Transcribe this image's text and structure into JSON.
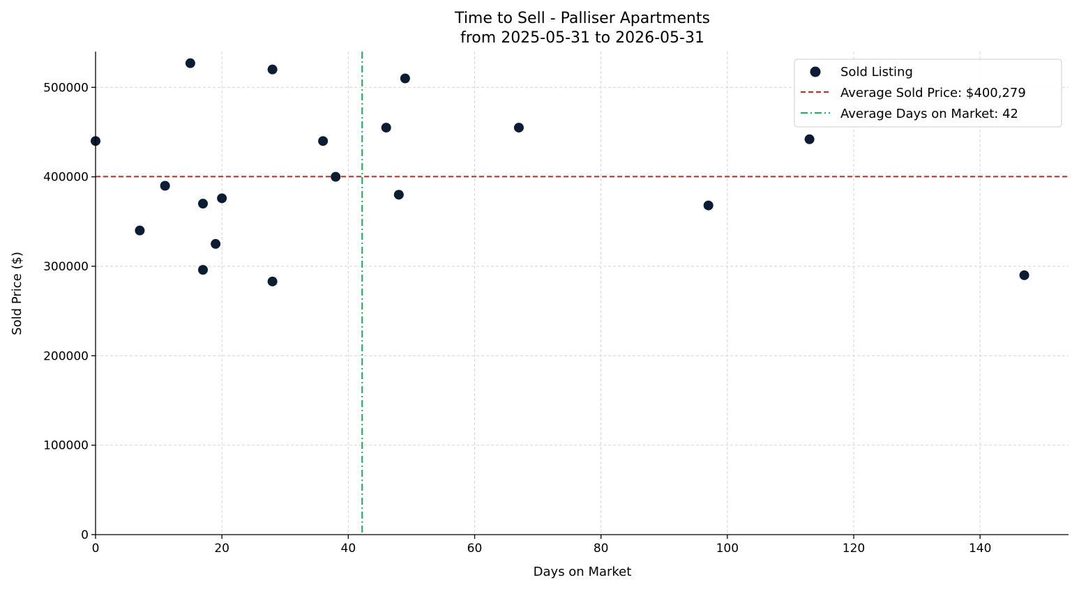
{
  "chart_data": {
    "type": "scatter",
    "title": "Time to Sell - Palliser Apartments",
    "subtitle": "from 2025-05-31 to 2026-05-31",
    "xlabel": "Days on Market",
    "ylabel": "Sold Price ($)",
    "xlim": [
      0,
      154
    ],
    "ylim": [
      0,
      540000
    ],
    "x_ticks": [
      0,
      20,
      40,
      60,
      80,
      100,
      120,
      140
    ],
    "y_ticks": [
      0,
      100000,
      200000,
      300000,
      400000,
      500000
    ],
    "grid": true,
    "legend_position": "top-right",
    "series": [
      {
        "name": "Sold Listing",
        "color": "#0b1c33",
        "points": [
          {
            "x": 0,
            "y": 440000
          },
          {
            "x": 7,
            "y": 340000
          },
          {
            "x": 11,
            "y": 390000
          },
          {
            "x": 15,
            "y": 527000
          },
          {
            "x": 17,
            "y": 370000
          },
          {
            "x": 17,
            "y": 296000
          },
          {
            "x": 19,
            "y": 325000
          },
          {
            "x": 20,
            "y": 376000
          },
          {
            "x": 28,
            "y": 520000
          },
          {
            "x": 28,
            "y": 283000
          },
          {
            "x": 36,
            "y": 440000
          },
          {
            "x": 38,
            "y": 400000
          },
          {
            "x": 46,
            "y": 455000
          },
          {
            "x": 48,
            "y": 380000
          },
          {
            "x": 49,
            "y": 510000
          },
          {
            "x": 67,
            "y": 455000
          },
          {
            "x": 97,
            "y": 368000
          },
          {
            "x": 113,
            "y": 442000
          },
          {
            "x": 147,
            "y": 290000
          }
        ]
      }
    ],
    "reference_lines": [
      {
        "name": "Average Sold Price: $400,279",
        "orientation": "horizontal",
        "value": 400279,
        "color": "#b03a2e",
        "style": "dashed"
      },
      {
        "name": "Average Days on Market: 42",
        "orientation": "vertical",
        "value": 42.2,
        "color": "#27ae60",
        "style": "dashdot"
      }
    ]
  }
}
